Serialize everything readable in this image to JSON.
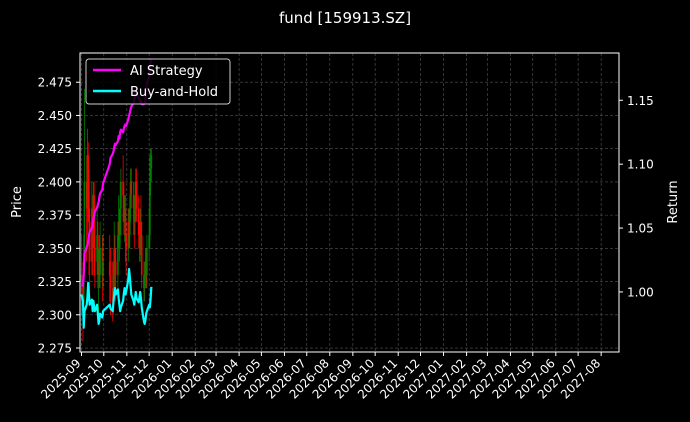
{
  "chart_data": {
    "type": "line",
    "title": "fund [159913.SZ]",
    "ylabel_left": "Price",
    "ylabel_right": "Return",
    "grid": true,
    "legend_placement": "top-left",
    "x_tick_labels": [
      "2025-09",
      "2025-10",
      "2025-11",
      "2025-12",
      "2026-01",
      "2026-02",
      "2026-03",
      "2026-04",
      "2026-05",
      "2026-06",
      "2026-07",
      "2026-08",
      "2026-09",
      "2026-10",
      "2026-11",
      "2026-12",
      "2027-01",
      "2027-02",
      "2027-03",
      "2027-04",
      "2027-05",
      "2027-06",
      "2027-07",
      "2027-08"
    ],
    "xlim": [
      "2025-08-30",
      "2027-08-25"
    ],
    "y_left_ticks": [
      2.275,
      2.3,
      2.325,
      2.35,
      2.375,
      2.4,
      2.425,
      2.45,
      2.475
    ],
    "y_left_lim": [
      2.272,
      2.497
    ],
    "y_right_ticks": [
      1.0,
      1.05,
      1.1,
      1.15
    ],
    "y_right_lim": [
      0.953,
      1.187
    ],
    "candle_colors": {
      "up": "#008000",
      "down": "#ff0000"
    },
    "candles": [
      {
        "date": "2025-09-01",
        "open": 2.325,
        "close": 2.33,
        "high": 2.36,
        "low": 2.3
      },
      {
        "date": "2025-09-03",
        "open": 2.33,
        "close": 2.31,
        "high": 2.34,
        "low": 2.28
      },
      {
        "date": "2025-09-04",
        "open": 2.31,
        "close": 2.34,
        "high": 2.36,
        "low": 2.3
      },
      {
        "date": "2025-09-05",
        "open": 2.34,
        "close": 2.4,
        "high": 2.47,
        "low": 2.33
      },
      {
        "date": "2025-09-08",
        "open": 2.4,
        "close": 2.38,
        "high": 2.42,
        "low": 2.34
      },
      {
        "date": "2025-09-09",
        "open": 2.38,
        "close": 2.42,
        "high": 2.44,
        "low": 2.36
      },
      {
        "date": "2025-09-10",
        "open": 2.42,
        "close": 2.4,
        "high": 2.43,
        "low": 2.37
      },
      {
        "date": "2025-09-11",
        "open": 2.4,
        "close": 2.37,
        "high": 2.41,
        "low": 2.33
      },
      {
        "date": "2025-09-12",
        "open": 2.37,
        "close": 2.34,
        "high": 2.38,
        "low": 2.31
      },
      {
        "date": "2025-09-15",
        "open": 2.34,
        "close": 2.38,
        "high": 2.4,
        "low": 2.33
      },
      {
        "date": "2025-09-16",
        "open": 2.38,
        "close": 2.36,
        "high": 2.39,
        "low": 2.33
      },
      {
        "date": "2025-09-17",
        "open": 2.36,
        "close": 2.39,
        "high": 2.4,
        "low": 2.35
      },
      {
        "date": "2025-09-18",
        "open": 2.39,
        "close": 2.35,
        "high": 2.4,
        "low": 2.33
      },
      {
        "date": "2025-09-19",
        "open": 2.35,
        "close": 2.34,
        "high": 2.37,
        "low": 2.32
      },
      {
        "date": "2025-09-22",
        "open": 2.34,
        "close": 2.36,
        "high": 2.38,
        "low": 2.33
      },
      {
        "date": "2025-09-23",
        "open": 2.36,
        "close": 2.33,
        "high": 2.37,
        "low": 2.32
      },
      {
        "date": "2025-09-24",
        "open": 2.33,
        "close": 2.34,
        "high": 2.35,
        "low": 2.3
      },
      {
        "date": "2025-09-25",
        "open": 2.34,
        "close": 2.33,
        "high": 2.36,
        "low": 2.32
      },
      {
        "date": "2025-09-26",
        "open": 2.33,
        "close": 2.35,
        "high": 2.37,
        "low": 2.32
      },
      {
        "date": "2025-09-29",
        "open": 2.35,
        "close": 2.33,
        "high": 2.36,
        "low": 2.31
      },
      {
        "date": "2025-09-30",
        "open": 2.33,
        "close": 2.34,
        "high": 2.36,
        "low": 2.32
      },
      {
        "date": "2025-10-09",
        "open": 2.34,
        "close": 2.33,
        "high": 2.36,
        "low": 2.31
      },
      {
        "date": "2025-10-10",
        "open": 2.33,
        "close": 2.32,
        "high": 2.35,
        "low": 2.3
      },
      {
        "date": "2025-10-13",
        "open": 2.32,
        "close": 2.31,
        "high": 2.34,
        "low": 2.295
      },
      {
        "date": "2025-10-14",
        "open": 2.31,
        "close": 2.33,
        "high": 2.34,
        "low": 2.3
      },
      {
        "date": "2025-10-15",
        "open": 2.33,
        "close": 2.35,
        "high": 2.37,
        "low": 2.32
      },
      {
        "date": "2025-10-16",
        "open": 2.35,
        "close": 2.34,
        "high": 2.36,
        "low": 2.32
      },
      {
        "date": "2025-10-17",
        "open": 2.34,
        "close": 2.33,
        "high": 2.35,
        "low": 2.31
      },
      {
        "date": "2025-10-20",
        "open": 2.33,
        "close": 2.36,
        "high": 2.37,
        "low": 2.32
      },
      {
        "date": "2025-10-21",
        "open": 2.36,
        "close": 2.37,
        "high": 2.39,
        "low": 2.35
      },
      {
        "date": "2025-10-22",
        "open": 2.37,
        "close": 2.36,
        "high": 2.38,
        "low": 2.34
      },
      {
        "date": "2025-10-23",
        "open": 2.36,
        "close": 2.38,
        "high": 2.4,
        "low": 2.35
      },
      {
        "date": "2025-10-24",
        "open": 2.38,
        "close": 2.4,
        "high": 2.41,
        "low": 2.36
      },
      {
        "date": "2025-10-27",
        "open": 2.4,
        "close": 2.39,
        "high": 2.42,
        "low": 2.37
      },
      {
        "date": "2025-10-28",
        "open": 2.39,
        "close": 2.37,
        "high": 2.4,
        "low": 2.36
      },
      {
        "date": "2025-10-29",
        "open": 2.37,
        "close": 2.38,
        "high": 2.39,
        "low": 2.355
      },
      {
        "date": "2025-10-30",
        "open": 2.38,
        "close": 2.36,
        "high": 2.39,
        "low": 2.34
      },
      {
        "date": "2025-10-31",
        "open": 2.36,
        "close": 2.35,
        "high": 2.37,
        "low": 2.33
      },
      {
        "date": "2025-11-03",
        "open": 2.35,
        "close": 2.37,
        "high": 2.38,
        "low": 2.34
      },
      {
        "date": "2025-11-04",
        "open": 2.37,
        "close": 2.36,
        "high": 2.38,
        "low": 2.35
      },
      {
        "date": "2025-11-05",
        "open": 2.36,
        "close": 2.38,
        "high": 2.39,
        "low": 2.35
      },
      {
        "date": "2025-11-06",
        "open": 2.38,
        "close": 2.4,
        "high": 2.41,
        "low": 2.37
      },
      {
        "date": "2025-11-07",
        "open": 2.4,
        "close": 2.39,
        "high": 2.41,
        "low": 2.38
      },
      {
        "date": "2025-11-10",
        "open": 2.39,
        "close": 2.38,
        "high": 2.4,
        "low": 2.36
      },
      {
        "date": "2025-11-11",
        "open": 2.38,
        "close": 2.37,
        "high": 2.39,
        "low": 2.35
      },
      {
        "date": "2025-11-12",
        "open": 2.37,
        "close": 2.39,
        "high": 2.4,
        "low": 2.36
      },
      {
        "date": "2025-11-13",
        "open": 2.39,
        "close": 2.4,
        "high": 2.41,
        "low": 2.37
      },
      {
        "date": "2025-11-14",
        "open": 2.4,
        "close": 2.38,
        "high": 2.41,
        "low": 2.37
      },
      {
        "date": "2025-11-17",
        "open": 2.38,
        "close": 2.36,
        "high": 2.39,
        "low": 2.35
      },
      {
        "date": "2025-11-18",
        "open": 2.36,
        "close": 2.35,
        "high": 2.37,
        "low": 2.34
      },
      {
        "date": "2025-11-19",
        "open": 2.35,
        "close": 2.37,
        "high": 2.38,
        "low": 2.34
      },
      {
        "date": "2025-11-20",
        "open": 2.37,
        "close": 2.36,
        "high": 2.39,
        "low": 2.345
      },
      {
        "date": "2025-11-21",
        "open": 2.36,
        "close": 2.33,
        "high": 2.37,
        "low": 2.32
      },
      {
        "date": "2025-11-24",
        "open": 2.33,
        "close": 2.32,
        "high": 2.34,
        "low": 2.31
      },
      {
        "date": "2025-11-25",
        "open": 2.32,
        "close": 2.33,
        "high": 2.34,
        "low": 2.31
      },
      {
        "date": "2025-11-26",
        "open": 2.33,
        "close": 2.34,
        "high": 2.35,
        "low": 2.32
      },
      {
        "date": "2025-11-27",
        "open": 2.34,
        "close": 2.33,
        "high": 2.35,
        "low": 2.32
      },
      {
        "date": "2025-11-28",
        "open": 2.33,
        "close": 2.35,
        "high": 2.36,
        "low": 2.32
      },
      {
        "date": "2025-12-01",
        "open": 2.35,
        "close": 2.36,
        "high": 2.38,
        "low": 2.34
      },
      {
        "date": "2025-12-02",
        "open": 2.36,
        "close": 2.4,
        "high": 2.42,
        "low": 2.35
      },
      {
        "date": "2025-12-03",
        "open": 2.4,
        "close": 2.41,
        "high": 2.425,
        "low": 2.39
      },
      {
        "date": "2025-12-04",
        "open": 2.41,
        "close": 2.42,
        "high": 2.425,
        "low": 2.4
      }
    ],
    "y2_series": [
      {
        "name": "AI Strategy",
        "color": "#ff00ff",
        "points": [
          [
            "2025-09-01",
            1.005
          ],
          [
            "2025-09-03",
            1.005
          ],
          [
            "2025-09-04",
            1.013
          ],
          [
            "2025-09-05",
            1.03
          ],
          [
            "2025-09-08",
            1.035
          ],
          [
            "2025-09-09",
            1.037
          ],
          [
            "2025-09-10",
            1.04
          ],
          [
            "2025-09-11",
            1.044
          ],
          [
            "2025-09-12",
            1.047
          ],
          [
            "2025-09-15",
            1.05
          ],
          [
            "2025-09-16",
            1.053
          ],
          [
            "2025-09-17",
            1.057
          ],
          [
            "2025-09-18",
            1.06
          ],
          [
            "2025-09-19",
            1.063
          ],
          [
            "2025-09-22",
            1.066
          ],
          [
            "2025-09-23",
            1.068
          ],
          [
            "2025-09-24",
            1.07
          ],
          [
            "2025-09-25",
            1.074
          ],
          [
            "2025-09-26",
            1.077
          ],
          [
            "2025-09-29",
            1.08
          ],
          [
            "2025-09-30",
            1.085
          ],
          [
            "2025-10-09",
            1.1
          ],
          [
            "2025-10-10",
            1.105
          ],
          [
            "2025-10-13",
            1.108
          ],
          [
            "2025-10-14",
            1.11
          ],
          [
            "2025-10-15",
            1.113
          ],
          [
            "2025-10-16",
            1.116
          ],
          [
            "2025-10-17",
            1.115
          ],
          [
            "2025-10-20",
            1.118
          ],
          [
            "2025-10-21",
            1.122
          ],
          [
            "2025-10-22",
            1.12
          ],
          [
            "2025-10-23",
            1.125
          ],
          [
            "2025-10-24",
            1.127
          ],
          [
            "2025-10-27",
            1.125
          ],
          [
            "2025-10-28",
            1.128
          ],
          [
            "2025-10-29",
            1.13
          ],
          [
            "2025-10-30",
            1.131
          ],
          [
            "2025-10-31",
            1.13
          ],
          [
            "2025-11-03",
            1.135
          ],
          [
            "2025-11-04",
            1.138
          ],
          [
            "2025-11-05",
            1.14
          ],
          [
            "2025-11-06",
            1.143
          ],
          [
            "2025-11-07",
            1.145
          ],
          [
            "2025-11-10",
            1.148
          ],
          [
            "2025-11-11",
            1.15
          ],
          [
            "2025-11-12",
            1.153
          ],
          [
            "2025-11-13",
            1.157
          ],
          [
            "2025-11-14",
            1.155
          ],
          [
            "2025-11-17",
            1.152
          ],
          [
            "2025-11-18",
            1.15
          ],
          [
            "2025-11-19",
            1.148
          ],
          [
            "2025-11-20",
            1.15
          ],
          [
            "2025-11-21",
            1.147
          ],
          [
            "2025-11-24",
            1.147
          ],
          [
            "2025-11-25",
            1.148
          ],
          [
            "2025-11-26",
            1.15
          ],
          [
            "2025-11-27",
            1.158
          ],
          [
            "2025-11-28",
            1.163
          ],
          [
            "2025-12-01",
            1.168
          ],
          [
            "2025-12-02",
            1.175
          ],
          [
            "2025-12-03",
            1.18
          ],
          [
            "2025-12-04",
            1.182
          ]
        ]
      },
      {
        "name": "Buy-and-Hold",
        "color": "#00ffff",
        "points": [
          [
            "2025-09-01",
            0.998
          ],
          [
            "2025-09-03",
            0.993
          ],
          [
            "2025-09-04",
            0.972
          ],
          [
            "2025-09-05",
            0.985
          ],
          [
            "2025-09-08",
            0.99
          ],
          [
            "2025-09-09",
            0.996
          ],
          [
            "2025-09-10",
            1.007
          ],
          [
            "2025-09-11",
            0.998
          ],
          [
            "2025-09-12",
            0.99
          ],
          [
            "2025-09-15",
            0.994
          ],
          [
            "2025-09-16",
            0.985
          ],
          [
            "2025-09-17",
            0.993
          ],
          [
            "2025-09-18",
            0.988
          ],
          [
            "2025-09-19",
            0.985
          ],
          [
            "2025-09-22",
            0.99
          ],
          [
            "2025-09-23",
            0.983
          ],
          [
            "2025-09-24",
            0.975
          ],
          [
            "2025-09-25",
            0.978
          ],
          [
            "2025-09-26",
            0.983
          ],
          [
            "2025-09-29",
            0.98
          ],
          [
            "2025-09-30",
            0.985
          ],
          [
            "2025-10-09",
            0.99
          ],
          [
            "2025-10-10",
            0.987
          ],
          [
            "2025-10-13",
            0.985
          ],
          [
            "2025-10-14",
            0.992
          ],
          [
            "2025-10-15",
            0.998
          ],
          [
            "2025-10-16",
            1.003
          ],
          [
            "2025-10-17",
            0.998
          ],
          [
            "2025-10-20",
            1.002
          ],
          [
            "2025-10-21",
            0.995
          ],
          [
            "2025-10-22",
            0.99
          ],
          [
            "2025-10-23",
            0.985
          ],
          [
            "2025-10-24",
            0.988
          ],
          [
            "2025-10-27",
            0.993
          ],
          [
            "2025-10-28",
            0.999
          ],
          [
            "2025-10-29",
            1.003
          ],
          [
            "2025-10-30",
            0.998
          ],
          [
            "2025-10-31",
            1.0
          ],
          [
            "2025-11-03",
            1.01
          ],
          [
            "2025-11-04",
            1.018
          ],
          [
            "2025-11-05",
            1.012
          ],
          [
            "2025-11-06",
            1.005
          ],
          [
            "2025-11-07",
            0.998
          ],
          [
            "2025-11-10",
            0.993
          ],
          [
            "2025-11-11",
            0.99
          ],
          [
            "2025-11-12",
            0.995
          ],
          [
            "2025-11-13",
            1.0
          ],
          [
            "2025-11-14",
            0.995
          ],
          [
            "2025-11-17",
            0.992
          ],
          [
            "2025-11-18",
            0.996
          ],
          [
            "2025-11-19",
            1.0
          ],
          [
            "2025-11-20",
            0.995
          ],
          [
            "2025-11-21",
            0.988
          ],
          [
            "2025-11-24",
            0.977
          ],
          [
            "2025-11-25",
            0.975
          ],
          [
            "2025-11-26",
            0.978
          ],
          [
            "2025-11-27",
            0.983
          ],
          [
            "2025-11-28",
            0.985
          ],
          [
            "2025-12-01",
            0.99
          ],
          [
            "2025-12-02",
            0.988
          ],
          [
            "2025-12-03",
            0.995
          ],
          [
            "2025-12-04",
            1.004
          ]
        ]
      }
    ]
  }
}
